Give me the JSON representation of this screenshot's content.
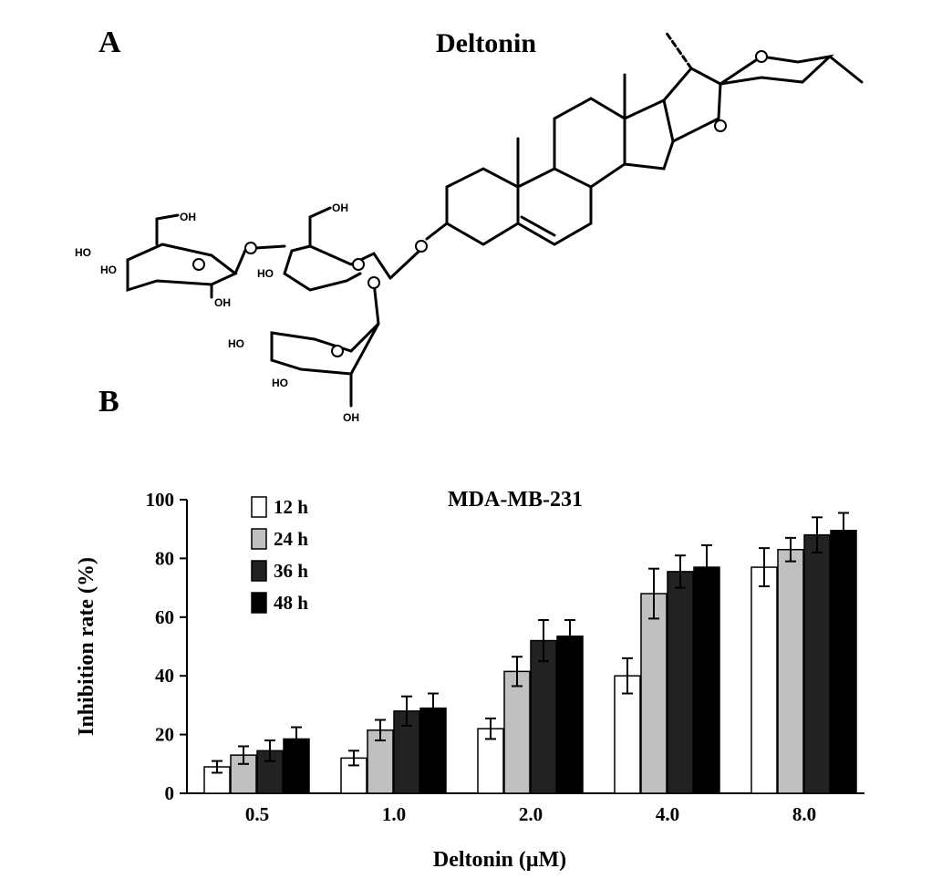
{
  "panels": {
    "a": "A",
    "b": "B"
  },
  "structure": {
    "title": "Deltonin",
    "atoms": {
      "O": "O",
      "OH": "OH",
      "HO": "HO"
    }
  },
  "chart_data": {
    "type": "bar",
    "title": "MDA-MB-231",
    "xlabel": "Deltonin (μM)",
    "ylabel": "Inhibition rate (%)",
    "ylim": [
      0,
      100
    ],
    "yticks": [
      "0",
      "20",
      "40",
      "60",
      "80",
      "100"
    ],
    "categories": [
      "0.5",
      "1.0",
      "2.0",
      "4.0",
      "8.0"
    ],
    "legend_position": "top-left",
    "series": [
      {
        "name": "12 h",
        "color": "#ffffff",
        "values": [
          9,
          12,
          22,
          40,
          77
        ],
        "errors": [
          2,
          2.5,
          3.5,
          6,
          6.5
        ]
      },
      {
        "name": "24 h",
        "color": "#c0c0c0",
        "values": [
          13,
          21.5,
          41.5,
          68,
          83
        ],
        "errors": [
          3,
          3.5,
          5,
          8.5,
          4
        ]
      },
      {
        "name": "36 h",
        "color": "#222222",
        "values": [
          14.5,
          28,
          52,
          75.5,
          88
        ],
        "errors": [
          3.5,
          5,
          7,
          5.5,
          6
        ]
      },
      {
        "name": "48 h",
        "color": "#000000",
        "values": [
          18.5,
          29,
          53.5,
          77,
          89.5
        ],
        "errors": [
          4,
          5,
          5.5,
          7.5,
          6
        ]
      }
    ]
  }
}
